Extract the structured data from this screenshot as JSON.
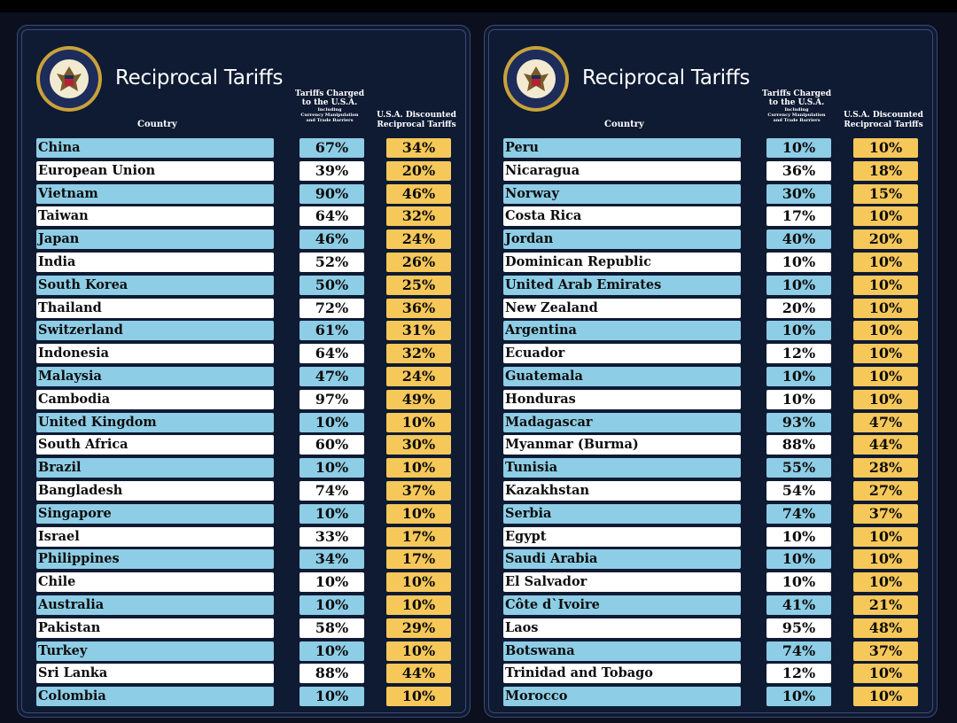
{
  "colors": {
    "blue_cell": "#8ecde6",
    "white_cell": "#ffffff",
    "gold_cell": "#f6c85a",
    "background": "#0f1a33"
  },
  "header": {
    "title": "Reciprocal Tariffs",
    "col_country": "Country",
    "col_charged_line1": "Tariffs Charged",
    "col_charged_line2": "to the U.S.A.",
    "col_charged_sub1": "Including",
    "col_charged_sub2": "Currency Manipulation",
    "col_charged_sub3": "and Trade Barriers",
    "col_discounted_line1": "U.S.A. Discounted",
    "col_discounted_line2": "Reciprocal Tariffs",
    "seal_icon": "presidential-seal-icon"
  },
  "chart_data": [
    {
      "type": "table",
      "columns": [
        "Country",
        "Tariffs Charged to the U.S.A.",
        "U.S.A. Discounted Reciprocal Tariffs"
      ],
      "rows": [
        [
          "China",
          "67%",
          "34%"
        ],
        [
          "European Union",
          "39%",
          "20%"
        ],
        [
          "Vietnam",
          "90%",
          "46%"
        ],
        [
          "Taiwan",
          "64%",
          "32%"
        ],
        [
          "Japan",
          "46%",
          "24%"
        ],
        [
          "India",
          "52%",
          "26%"
        ],
        [
          "South Korea",
          "50%",
          "25%"
        ],
        [
          "Thailand",
          "72%",
          "36%"
        ],
        [
          "Switzerland",
          "61%",
          "31%"
        ],
        [
          "Indonesia",
          "64%",
          "32%"
        ],
        [
          "Malaysia",
          "47%",
          "24%"
        ],
        [
          "Cambodia",
          "97%",
          "49%"
        ],
        [
          "United Kingdom",
          "10%",
          "10%"
        ],
        [
          "South Africa",
          "60%",
          "30%"
        ],
        [
          "Brazil",
          "10%",
          "10%"
        ],
        [
          "Bangladesh",
          "74%",
          "37%"
        ],
        [
          "Singapore",
          "10%",
          "10%"
        ],
        [
          "Israel",
          "33%",
          "17%"
        ],
        [
          "Philippines",
          "34%",
          "17%"
        ],
        [
          "Chile",
          "10%",
          "10%"
        ],
        [
          "Australia",
          "10%",
          "10%"
        ],
        [
          "Pakistan",
          "58%",
          "29%"
        ],
        [
          "Turkey",
          "10%",
          "10%"
        ],
        [
          "Sri Lanka",
          "88%",
          "44%"
        ],
        [
          "Colombia",
          "10%",
          "10%"
        ]
      ]
    },
    {
      "type": "table",
      "columns": [
        "Country",
        "Tariffs Charged to the U.S.A.",
        "U.S.A. Discounted Reciprocal Tariffs"
      ],
      "rows": [
        [
          "Peru",
          "10%",
          "10%"
        ],
        [
          "Nicaragua",
          "36%",
          "18%"
        ],
        [
          "Norway",
          "30%",
          "15%"
        ],
        [
          "Costa Rica",
          "17%",
          "10%"
        ],
        [
          "Jordan",
          "40%",
          "20%"
        ],
        [
          "Dominican Republic",
          "10%",
          "10%"
        ],
        [
          "United Arab Emirates",
          "10%",
          "10%"
        ],
        [
          "New Zealand",
          "20%",
          "10%"
        ],
        [
          "Argentina",
          "10%",
          "10%"
        ],
        [
          "Ecuador",
          "12%",
          "10%"
        ],
        [
          "Guatemala",
          "10%",
          "10%"
        ],
        [
          "Honduras",
          "10%",
          "10%"
        ],
        [
          "Madagascar",
          "93%",
          "47%"
        ],
        [
          "Myanmar (Burma)",
          "88%",
          "44%"
        ],
        [
          "Tunisia",
          "55%",
          "28%"
        ],
        [
          "Kazakhstan",
          "54%",
          "27%"
        ],
        [
          "Serbia",
          "74%",
          "37%"
        ],
        [
          "Egypt",
          "10%",
          "10%"
        ],
        [
          "Saudi Arabia",
          "10%",
          "10%"
        ],
        [
          "El Salvador",
          "10%",
          "10%"
        ],
        [
          "Côte d`Ivoire",
          "41%",
          "21%"
        ],
        [
          "Laos",
          "95%",
          "48%"
        ],
        [
          "Botswana",
          "74%",
          "37%"
        ],
        [
          "Trinidad and Tobago",
          "12%",
          "10%"
        ],
        [
          "Morocco",
          "10%",
          "10%"
        ]
      ]
    }
  ]
}
